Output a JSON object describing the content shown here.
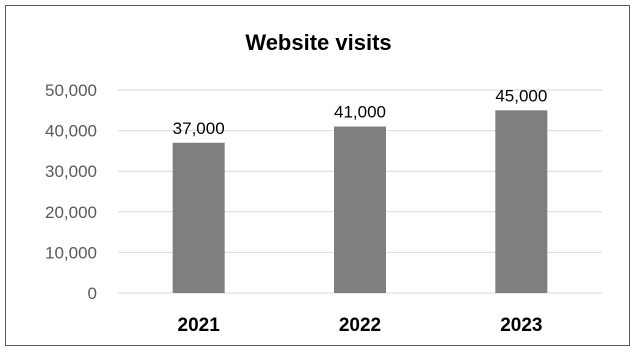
{
  "chart_data": {
    "type": "bar",
    "title": "Website visits",
    "categories": [
      "2021",
      "2022",
      "2023"
    ],
    "values": [
      37000,
      41000,
      45000
    ],
    "value_labels": [
      "37,000",
      "41,000",
      "45,000"
    ],
    "yticks": [
      0,
      10000,
      20000,
      30000,
      40000,
      50000
    ],
    "ytick_labels": [
      "0",
      "10,000",
      "20,000",
      "30,000",
      "40,000",
      "50,000"
    ],
    "ylim": [
      0,
      50000
    ],
    "grid": true,
    "legend": "none",
    "xlabel": "",
    "ylabel": "",
    "colors": {
      "bar": "#7f7f7f",
      "grid": "#d9d9d9",
      "tick_text": "#595959",
      "category_text": "#000000",
      "value_label_text": "#000000",
      "frame": "#595959"
    }
  }
}
